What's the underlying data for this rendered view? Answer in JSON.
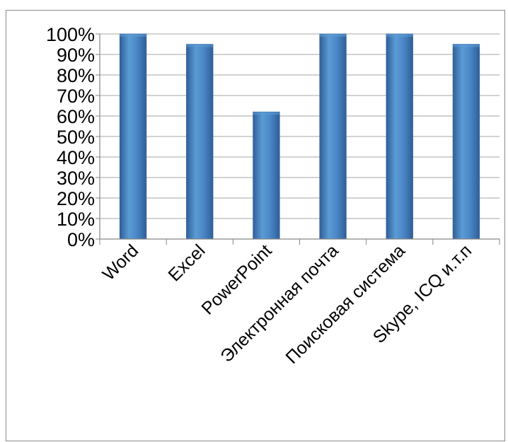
{
  "chart_data": {
    "type": "bar",
    "categories": [
      "Word",
      "Excel",
      "PowerPoint",
      "Электронная почта",
      "Поисковая система",
      "Skype, ICQ и.т.п"
    ],
    "values": [
      100,
      95,
      62,
      100,
      100,
      95
    ],
    "ylim": [
      0,
      100
    ],
    "yticks": [
      "0%",
      "10%",
      "20%",
      "30%",
      "40%",
      "50%",
      "60%",
      "70%",
      "80%",
      "90%",
      "100%"
    ],
    "grid": true,
    "legend": "none",
    "colors": {
      "bar_light": "#5b9bd5",
      "bar_mid": "#4a86c6",
      "bar_dark": "#2f5f98",
      "grid": "#a6a6a6",
      "axis": "#868686"
    }
  }
}
